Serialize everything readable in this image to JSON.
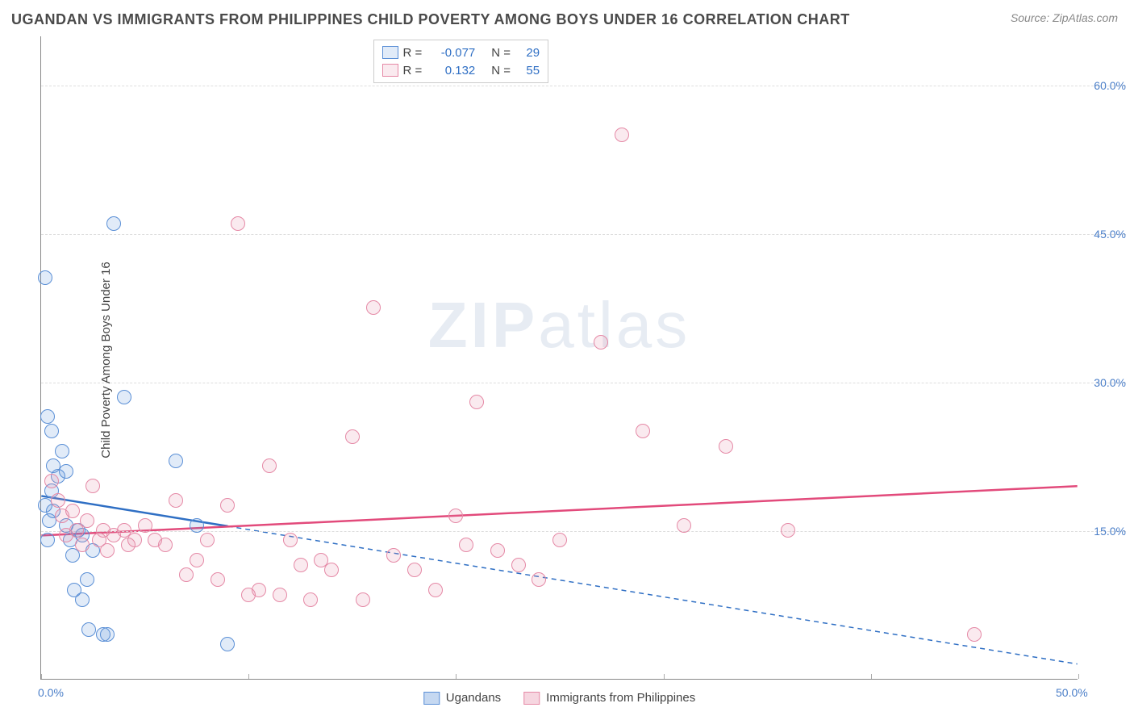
{
  "title": "UGANDAN VS IMMIGRANTS FROM PHILIPPINES CHILD POVERTY AMONG BOYS UNDER 16 CORRELATION CHART",
  "source": "Source: ZipAtlas.com",
  "ylabel": "Child Poverty Among Boys Under 16",
  "watermark_bold": "ZIP",
  "watermark_light": "atlas",
  "chart": {
    "type": "scatter-with-regression",
    "xlim": [
      0,
      50
    ],
    "ylim": [
      0,
      65
    ],
    "y_ticks": [
      15,
      30,
      45,
      60
    ],
    "y_tick_labels": [
      "15.0%",
      "30.0%",
      "45.0%",
      "60.0%"
    ],
    "x_ticks": [
      0,
      10,
      20,
      30,
      40,
      50
    ],
    "x_tick_labels_shown": {
      "0": "0.0%",
      "50": "50.0%"
    },
    "background_color": "#ffffff",
    "grid_color": "#dddddd",
    "axis_color": "#888888",
    "text_color": "#4a4a4a",
    "tick_label_color": "#4a7ec8",
    "point_radius": 9,
    "point_opacity_fill": 0.18,
    "series": [
      {
        "name": "Ugandans",
        "color_stroke": "#5a8fd6",
        "color_fill": "rgba(90,143,214,0.18)",
        "line_color": "#2f6fc4",
        "R": "-0.077",
        "N": "29",
        "regression": {
          "x1": 0,
          "y1": 18.5,
          "x2": 50,
          "y2": 1.5,
          "solid_until_x": 9
        },
        "points": [
          [
            0.2,
            40.5
          ],
          [
            0.3,
            26.5
          ],
          [
            0.5,
            25.0
          ],
          [
            0.6,
            21.5
          ],
          [
            0.8,
            20.5
          ],
          [
            0.5,
            19.0
          ],
          [
            0.2,
            17.5
          ],
          [
            0.6,
            17.0
          ],
          [
            0.4,
            16.0
          ],
          [
            0.3,
            14.0
          ],
          [
            1.0,
            23.0
          ],
          [
            1.2,
            21.0
          ],
          [
            1.2,
            15.5
          ],
          [
            1.4,
            14.0
          ],
          [
            1.6,
            9.0
          ],
          [
            1.8,
            15.0
          ],
          [
            2.0,
            14.5
          ],
          [
            2.2,
            10.0
          ],
          [
            2.0,
            8.0
          ],
          [
            2.3,
            5.0
          ],
          [
            3.0,
            4.5
          ],
          [
            3.2,
            4.5
          ],
          [
            3.5,
            46.0
          ],
          [
            4.0,
            28.5
          ],
          [
            6.5,
            22.0
          ],
          [
            7.5,
            15.5
          ],
          [
            9.0,
            3.5
          ],
          [
            2.5,
            13.0
          ],
          [
            1.5,
            12.5
          ]
        ]
      },
      {
        "name": "Immigrants from Philippines",
        "color_stroke": "#e589a6",
        "color_fill": "rgba(229,137,166,0.18)",
        "line_color": "#e24a7b",
        "R": "0.132",
        "N": "55",
        "regression": {
          "x1": 0,
          "y1": 14.5,
          "x2": 50,
          "y2": 19.5,
          "solid_until_x": 50
        },
        "points": [
          [
            0.5,
            20.0
          ],
          [
            0.8,
            18.0
          ],
          [
            1.0,
            16.5
          ],
          [
            1.2,
            14.5
          ],
          [
            1.5,
            17.0
          ],
          [
            1.7,
            15.0
          ],
          [
            2.0,
            13.5
          ],
          [
            2.2,
            16.0
          ],
          [
            2.5,
            19.5
          ],
          [
            2.8,
            14.0
          ],
          [
            3.0,
            15.0
          ],
          [
            3.2,
            13.0
          ],
          [
            3.5,
            14.5
          ],
          [
            4.0,
            15.0
          ],
          [
            4.2,
            13.5
          ],
          [
            4.5,
            14.0
          ],
          [
            5.0,
            15.5
          ],
          [
            5.5,
            14.0
          ],
          [
            6.0,
            13.5
          ],
          [
            7.0,
            10.5
          ],
          [
            7.5,
            12.0
          ],
          [
            8.0,
            14.0
          ],
          [
            8.5,
            10.0
          ],
          [
            9.0,
            17.5
          ],
          [
            9.5,
            46.0
          ],
          [
            10.0,
            8.5
          ],
          [
            10.5,
            9.0
          ],
          [
            11.0,
            21.5
          ],
          [
            11.5,
            8.5
          ],
          [
            12.0,
            14.0
          ],
          [
            12.5,
            11.5
          ],
          [
            13.0,
            8.0
          ],
          [
            13.5,
            12.0
          ],
          [
            14.0,
            11.0
          ],
          [
            15.0,
            24.5
          ],
          [
            15.5,
            8.0
          ],
          [
            16.0,
            37.5
          ],
          [
            17.0,
            12.5
          ],
          [
            18.0,
            11.0
          ],
          [
            19.0,
            9.0
          ],
          [
            20.0,
            16.5
          ],
          [
            20.5,
            13.5
          ],
          [
            21.0,
            28.0
          ],
          [
            22.0,
            13.0
          ],
          [
            23.0,
            11.5
          ],
          [
            24.0,
            10.0
          ],
          [
            25.0,
            14.0
          ],
          [
            27.0,
            34.0
          ],
          [
            28.0,
            55.0
          ],
          [
            29.0,
            25.0
          ],
          [
            31.0,
            15.5
          ],
          [
            33.0,
            23.5
          ],
          [
            36.0,
            15.0
          ],
          [
            45.0,
            4.5
          ],
          [
            6.5,
            18.0
          ]
        ]
      }
    ]
  },
  "legend_top": {
    "r_label": "R =",
    "n_label": "N ="
  },
  "legend_bottom": [
    {
      "label": "Ugandans",
      "stroke": "#5a8fd6",
      "fill": "rgba(90,143,214,0.35)"
    },
    {
      "label": "Immigrants from Philippines",
      "stroke": "#e589a6",
      "fill": "rgba(229,137,166,0.35)"
    }
  ]
}
